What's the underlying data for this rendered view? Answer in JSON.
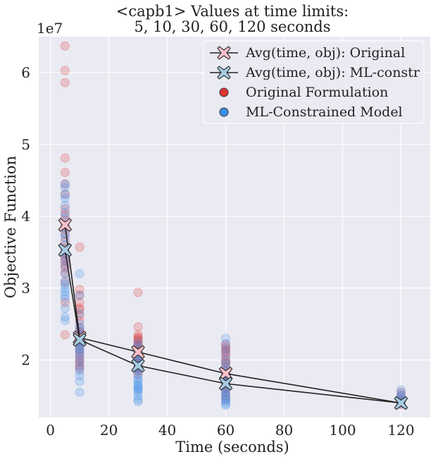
{
  "chart_data": {
    "type": "scatter",
    "title": "<capb1> Values at time limits:",
    "subtitle": "5, 10, 30, 60, 120 seconds",
    "xlabel": "Time (seconds)",
    "ylabel": "Objective Function",
    "y_scale_label": "1e7",
    "xlim": [
      -4,
      130
    ],
    "ylim": [
      1.2,
      6.5
    ],
    "x_ticks": [
      0,
      20,
      40,
      60,
      80,
      100,
      120
    ],
    "y_ticks": [
      2,
      3,
      4,
      5,
      6
    ],
    "x_tick_labels": [
      "0",
      "20",
      "40",
      "60",
      "80",
      "100",
      "120"
    ],
    "y_tick_labels": [
      "2",
      "3",
      "4",
      "5",
      "6"
    ],
    "grid": true,
    "legend_position": "top-right",
    "legend": [
      {
        "label": "Avg(time, obj): Original",
        "kind": "line-marker",
        "color": "#ffc0cb"
      },
      {
        "label": "Avg(time, obj): ML-constr",
        "kind": "line-marker",
        "color": "#a6cbe3"
      },
      {
        "label": "Original Formulation",
        "kind": "dot",
        "color": "#e03535"
      },
      {
        "label": "ML-Constrained Model",
        "kind": "dot",
        "color": "#3a8ee8"
      }
    ],
    "colors": {
      "original": "#e03535",
      "ml": "#3a8ee8",
      "avg_original": "#ffc0cb",
      "avg_ml": "#a6cbe3",
      "line": "#222222",
      "plot_bg": "#eaeaf2",
      "grid": "#ffffff"
    },
    "series": [
      {
        "name": "Original Formulation",
        "x": [
          5,
          5,
          5,
          5,
          5,
          5,
          5,
          5,
          5,
          5,
          5,
          5,
          5,
          5,
          5,
          5,
          5,
          5,
          5,
          5,
          5,
          5,
          5,
          5,
          10,
          10,
          10,
          10,
          10,
          10,
          10,
          10,
          10,
          10,
          10,
          10,
          10,
          10,
          10,
          10,
          10,
          10,
          10,
          10,
          10,
          10,
          30,
          30,
          30,
          30,
          30,
          30,
          30,
          30,
          30,
          30,
          30,
          30,
          30,
          30,
          30,
          30,
          30,
          30,
          30,
          30,
          30,
          30,
          30,
          60,
          60,
          60,
          60,
          60,
          60,
          60,
          60,
          60,
          60,
          60,
          60,
          60,
          60,
          60,
          60,
          60,
          60,
          60,
          60,
          60,
          60,
          60,
          120,
          120,
          120,
          120,
          120,
          120
        ],
        "y": [
          6.37,
          6.03,
          5.86,
          4.81,
          4.61,
          4.45,
          4.31,
          4.1,
          4.02,
          3.95,
          3.88,
          3.82,
          3.75,
          3.65,
          3.55,
          3.48,
          3.42,
          3.38,
          3.33,
          3.28,
          3.21,
          3.08,
          2.8,
          2.35,
          3.57,
          2.98,
          2.9,
          2.8,
          2.7,
          2.55,
          2.45,
          2.38,
          2.3,
          2.25,
          2.2,
          2.15,
          2.1,
          2.05,
          2.0,
          1.97,
          1.92,
          1.88,
          2.35,
          2.4,
          2.62,
          2.72,
          2.94,
          2.46,
          2.35,
          2.32,
          2.3,
          2.26,
          2.22,
          2.2,
          2.18,
          2.15,
          2.12,
          2.1,
          2.05,
          2.02,
          2.0,
          1.98,
          1.95,
          1.92,
          1.9,
          1.88,
          1.85,
          1.8,
          2.28,
          2.22,
          2.18,
          2.15,
          2.1,
          2.05,
          2.0,
          1.95,
          1.9,
          1.85,
          1.8,
          1.78,
          1.75,
          1.72,
          1.7,
          1.68,
          1.65,
          1.62,
          1.6,
          1.55,
          1.5,
          1.45,
          1.97,
          2.12,
          1.55,
          1.5,
          1.45,
          1.42,
          1.4,
          1.38
        ]
      },
      {
        "name": "ML-Constrained Model",
        "x": [
          5,
          5,
          5,
          5,
          5,
          5,
          5,
          5,
          5,
          5,
          5,
          5,
          5,
          5,
          5,
          5,
          5,
          5,
          5,
          5,
          5,
          5,
          5,
          5,
          5,
          10,
          10,
          10,
          10,
          10,
          10,
          10,
          10,
          10,
          10,
          10,
          10,
          10,
          10,
          10,
          10,
          10,
          10,
          10,
          10,
          10,
          30,
          30,
          30,
          30,
          30,
          30,
          30,
          30,
          30,
          30,
          30,
          30,
          30,
          30,
          30,
          30,
          30,
          30,
          30,
          30,
          30,
          30,
          30,
          30,
          60,
          60,
          60,
          60,
          60,
          60,
          60,
          60,
          60,
          60,
          60,
          60,
          60,
          60,
          60,
          60,
          60,
          60,
          60,
          60,
          60,
          60,
          60,
          60,
          120,
          120,
          120,
          120,
          120,
          120,
          120
        ],
        "y": [
          4.45,
          4.4,
          4.3,
          4.25,
          4.15,
          4.05,
          3.98,
          3.85,
          3.75,
          3.7,
          3.6,
          3.5,
          3.45,
          3.38,
          3.3,
          3.2,
          3.1,
          3.05,
          2.95,
          2.9,
          2.85,
          2.72,
          2.6,
          2.55,
          3.0,
          3.2,
          2.9,
          2.65,
          2.5,
          2.45,
          2.4,
          2.35,
          2.28,
          2.22,
          2.18,
          2.12,
          2.08,
          2.02,
          1.97,
          1.9,
          1.85,
          1.78,
          1.7,
          1.55,
          2.25,
          2.15,
          2.25,
          2.2,
          2.15,
          2.1,
          2.05,
          2.0,
          1.95,
          1.9,
          1.85,
          1.8,
          1.75,
          1.72,
          1.68,
          1.65,
          1.6,
          1.58,
          1.55,
          1.5,
          1.45,
          1.42,
          1.88,
          1.98,
          2.08,
          1.62,
          2.3,
          2.22,
          2.15,
          2.08,
          2.0,
          1.95,
          1.9,
          1.85,
          1.8,
          1.75,
          1.7,
          1.67,
          1.63,
          1.6,
          1.57,
          1.53,
          1.5,
          1.48,
          1.45,
          1.42,
          1.39,
          1.37,
          1.82,
          1.72,
          1.58,
          1.53,
          1.5,
          1.47,
          1.44,
          1.41,
          1.39
        ]
      },
      {
        "name": "Avg(time, obj): Original",
        "x": [
          5,
          10,
          30,
          60,
          120
        ],
        "y": [
          3.88,
          2.31,
          2.11,
          1.81,
          1.4
        ]
      },
      {
        "name": "Avg(time, obj): ML-constr",
        "x": [
          5,
          10,
          30,
          60,
          120
        ],
        "y": [
          3.53,
          2.28,
          1.92,
          1.67,
          1.4
        ]
      }
    ]
  }
}
